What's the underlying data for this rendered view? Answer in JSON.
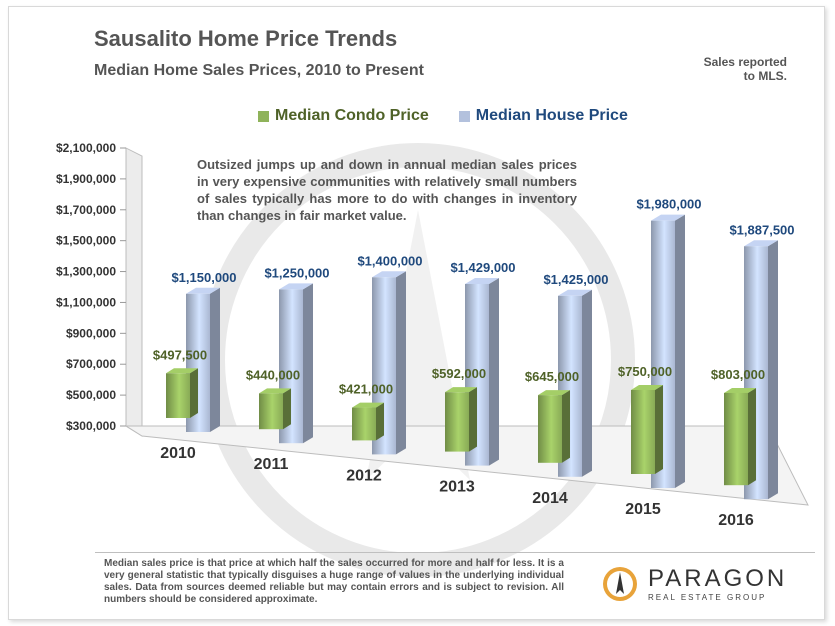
{
  "header": {
    "title": "Sausalito Home Price Trends",
    "subtitle": "Median Home Sales Prices, 2010 to Present",
    "note": "Sales reported\nto MLS."
  },
  "annotation": "Outsized jumps up and down in annual median sales prices in very expensive communities with relatively small numbers of sales typically has more to do with changes in inventory than changes in fair market value.",
  "footer": {
    "text": "Median sales price is that price at which half the sales occurred for more and half for less. It is a very general statistic that typically disguises a huge range of values in the underlying individual sales. Data from sources deemed reliable but may contain errors and is subject to revision. All numbers should be considered approximate."
  },
  "logo": {
    "name": "PARAGON",
    "tagline": "REAL ESTATE GROUP",
    "color": "#e8a33a"
  },
  "chart_data": {
    "type": "bar",
    "title": "Sausalito Home Price Trends",
    "subtitle": "Median Home Sales Prices, 2010 to Present",
    "categories": [
      "2010",
      "2011",
      "2012",
      "2013",
      "2014",
      "2015",
      "2016"
    ],
    "series": [
      {
        "name": "Median Condo Price",
        "color": "#8fb35a",
        "values": [
          497500,
          440000,
          421000,
          592000,
          645000,
          750000,
          803000
        ],
        "labels": [
          "$497,500",
          "$440,000",
          "$421,000",
          "$592,000",
          "$645,000",
          "$750,000",
          "$803,000"
        ]
      },
      {
        "name": "Median House Price",
        "color": "#b3c1dd",
        "values": [
          1150000,
          1250000,
          1400000,
          1429000,
          1425000,
          1980000,
          1887500
        ],
        "labels": [
          "$1,150,000",
          "$1,250,000",
          "$1,400,000",
          "$1,429,000",
          "$1,425,000",
          "$1,980,000",
          "$1,887,500"
        ]
      }
    ],
    "yticks": [
      "$300,000",
      "$500,000",
      "$700,000",
      "$900,000",
      "$1,100,000",
      "$1,300,000",
      "$1,500,000",
      "$1,700,000",
      "$1,900,000",
      "$2,100,000"
    ],
    "ylim": [
      300000,
      2100000
    ],
    "xlabel": "",
    "ylabel": "",
    "legend": "top",
    "grid": false,
    "label_colors": {
      "condo": "#4f6228",
      "house": "#1f497d"
    }
  }
}
